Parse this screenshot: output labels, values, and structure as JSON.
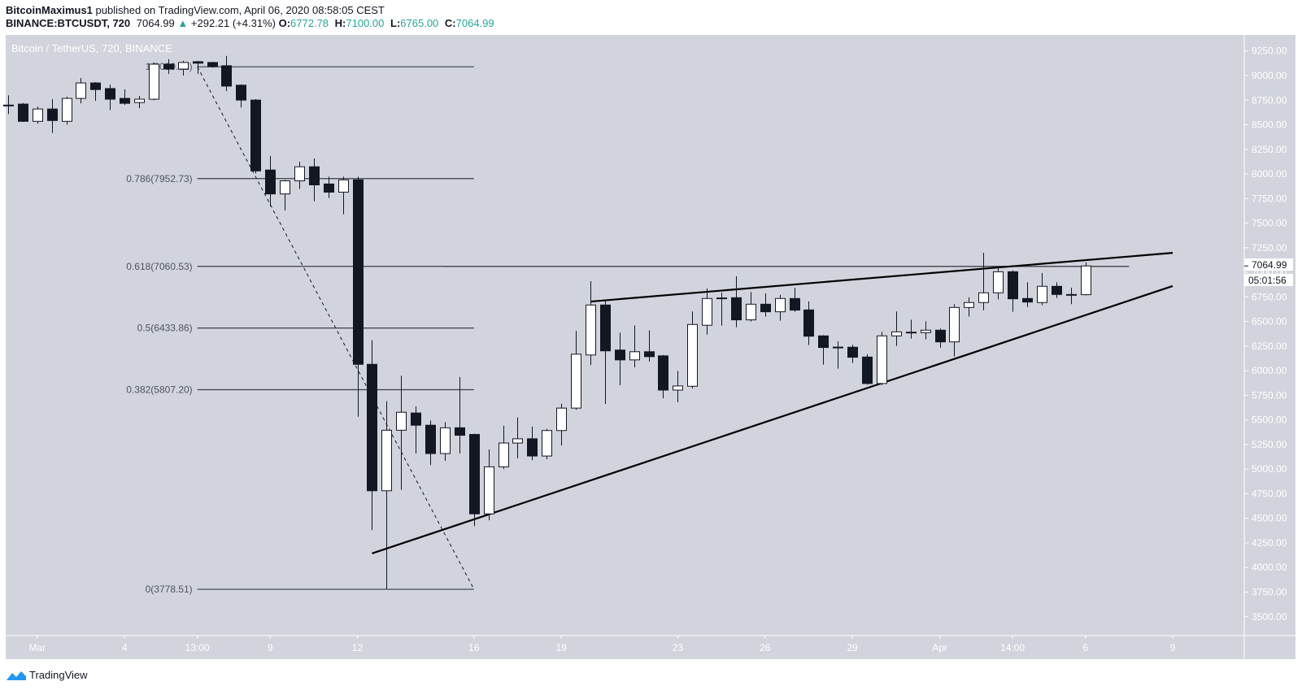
{
  "header": {
    "author": "BitcoinMaximus1",
    "published": "published on TradingView.com, April 06, 2020 08:58:05 CEST",
    "symbol": "BINANCE:BTCUSDT, 720",
    "last": "7064.99",
    "change": "+292.21 (+4.31%)",
    "o_label": "O:",
    "o": "6772.78",
    "h_label": "H:",
    "h": "7100.00",
    "l_label": "L:",
    "l": "6765.00",
    "c_label": "C:",
    "c": "7064.99",
    "up_icon": "triangle-up-icon"
  },
  "footer": {
    "brand": "TradingView",
    "logo_icon": "tradingview-logo-icon"
  },
  "colors": {
    "background": "#d1d4dc",
    "bear": "#131722",
    "bull": "#ffffff",
    "axis_text": "#ffffff",
    "change_green": "#26a69a"
  },
  "chart_data": {
    "type": "candlestick",
    "title": "Bitcoin / TetherUS, 720, BINANCE",
    "ylim": [
      3308,
      9413
    ],
    "xlim": [
      "2020-02-28 22:00",
      "2020-04-11 11:00"
    ],
    "grid": false,
    "y_ticks": [
      "9250.00",
      "9000.00",
      "8750.00",
      "8500.00",
      "8250.00",
      "8000.00",
      "7750.00",
      "7500.00",
      "7250.00",
      "7000.00",
      "6750.00",
      "6500.00",
      "6250.00",
      "6000.00",
      "5750.00",
      "5500.00",
      "5250.00",
      "5000.00",
      "4750.00",
      "4500.00",
      "4250.00",
      "4000.00",
      "3750.00",
      "3500.00"
    ],
    "x_ticks": [
      {
        "label": "Mar",
        "t": "2020-03-01 00:00"
      },
      {
        "label": "4",
        "t": "2020-03-04 00:00"
      },
      {
        "label": "13:00",
        "t": "2020-03-06 12:00"
      },
      {
        "label": "9",
        "t": "2020-03-09 00:00"
      },
      {
        "label": "12",
        "t": "2020-03-12 00:00"
      },
      {
        "label": "16",
        "t": "2020-03-16 00:00"
      },
      {
        "label": "19",
        "t": "2020-03-19 00:00"
      },
      {
        "label": "23",
        "t": "2020-03-23 00:00"
      },
      {
        "label": "26",
        "t": "2020-03-26 00:00"
      },
      {
        "label": "29",
        "t": "2020-03-29 00:00"
      },
      {
        "label": "Apr",
        "t": "2020-04-01 00:00"
      },
      {
        "label": "14:00",
        "t": "2020-04-03 12:00"
      },
      {
        "label": "6",
        "t": "2020-04-06 00:00"
      },
      {
        "label": "9",
        "t": "2020-04-09 00:00"
      }
    ],
    "last_price_label": "7064.99",
    "countdown": "05:01:56",
    "candles": [
      [
        "2020-02-29 00:00",
        8700,
        8800,
        8610,
        8700
      ],
      [
        "2020-02-29 12:00",
        8710,
        8720,
        8530,
        8535
      ],
      [
        "2020-03-01 00:00",
        8535,
        8685,
        8510,
        8660
      ],
      [
        "2020-03-01 12:00",
        8660,
        8760,
        8417,
        8543
      ],
      [
        "2020-03-02 00:00",
        8535,
        8785,
        8502,
        8768
      ],
      [
        "2020-03-02 12:00",
        8768,
        8975,
        8718,
        8925
      ],
      [
        "2020-03-03 00:00",
        8925,
        8934,
        8743,
        8858
      ],
      [
        "2020-03-03 12:00",
        8868,
        8908,
        8650,
        8760
      ],
      [
        "2020-03-04 00:00",
        8768,
        8860,
        8701,
        8718
      ],
      [
        "2020-03-04 12:00",
        8726,
        8793,
        8667,
        8760
      ],
      [
        "2020-03-05 00:00",
        8760,
        9133,
        8750,
        9116
      ],
      [
        "2020-03-05 12:00",
        9116,
        9166,
        9017,
        9066
      ],
      [
        "2020-03-06 00:00",
        9066,
        9150,
        9000,
        9133
      ],
      [
        "2020-03-06 12:00",
        9141,
        9150,
        9017,
        9126
      ],
      [
        "2020-03-07 00:00",
        9133,
        9140,
        9080,
        9091
      ],
      [
        "2020-03-07 12:00",
        9100,
        9200,
        8843,
        8893
      ],
      [
        "2020-03-08 00:00",
        8902,
        8910,
        8676,
        8751
      ],
      [
        "2020-03-08 12:00",
        8751,
        8760,
        8006,
        8031
      ],
      [
        "2020-03-09 00:00",
        8040,
        8183,
        7672,
        7797
      ],
      [
        "2020-03-09 12:00",
        7797,
        7940,
        7630,
        7930
      ],
      [
        "2020-03-10 00:00",
        7930,
        8123,
        7847,
        8073
      ],
      [
        "2020-03-10 12:00",
        8073,
        8157,
        7722,
        7889
      ],
      [
        "2020-03-11 00:00",
        7898,
        7972,
        7756,
        7815
      ],
      [
        "2020-03-11 12:00",
        7815,
        7972,
        7590,
        7940
      ],
      [
        "2020-03-12 00:00",
        7940,
        7972,
        5532,
        6065
      ],
      [
        "2020-03-12 12:00",
        6065,
        6310,
        4380,
        4780
      ],
      [
        "2020-03-13 00:00",
        4780,
        5690,
        3782,
        5395
      ],
      [
        "2020-03-13 12:00",
        5395,
        5950,
        4790,
        5578
      ],
      [
        "2020-03-14 00:00",
        5570,
        5637,
        5158,
        5446
      ],
      [
        "2020-03-14 12:00",
        5446,
        5494,
        5042,
        5158
      ],
      [
        "2020-03-15 00:00",
        5158,
        5477,
        5084,
        5420
      ],
      [
        "2020-03-15 12:00",
        5420,
        5936,
        5158,
        5344
      ],
      [
        "2020-03-16 00:00",
        5352,
        5360,
        4420,
        4545
      ],
      [
        "2020-03-16 12:00",
        4545,
        5200,
        4480,
        5023
      ],
      [
        "2020-03-17 00:00",
        5023,
        5440,
        5000,
        5265
      ],
      [
        "2020-03-17 12:00",
        5265,
        5525,
        5110,
        5308
      ],
      [
        "2020-03-18 00:00",
        5308,
        5433,
        5090,
        5133
      ],
      [
        "2020-03-18 12:00",
        5133,
        5408,
        5100,
        5392
      ],
      [
        "2020-03-19 00:00",
        5392,
        5665,
        5240,
        5620
      ],
      [
        "2020-03-19 12:00",
        5620,
        6405,
        5603,
        6168
      ],
      [
        "2020-03-20 00:00",
        6160,
        6910,
        6058,
        6668
      ],
      [
        "2020-03-20 12:00",
        6668,
        6718,
        5662,
        6202
      ],
      [
        "2020-03-21 00:00",
        6210,
        6386,
        5853,
        6110
      ],
      [
        "2020-03-21 12:00",
        6110,
        6460,
        6035,
        6193
      ],
      [
        "2020-03-22 00:00",
        6193,
        6410,
        6093,
        6143
      ],
      [
        "2020-03-22 12:00",
        6151,
        6160,
        5720,
        5803
      ],
      [
        "2020-03-23 00:00",
        5803,
        5997,
        5680,
        5845
      ],
      [
        "2020-03-23 12:00",
        5842,
        6602,
        5820,
        6470
      ],
      [
        "2020-03-24 00:00",
        6462,
        6836,
        6368,
        6734
      ],
      [
        "2020-03-24 12:00",
        6737,
        6795,
        6459,
        6740
      ],
      [
        "2020-03-25 00:00",
        6742,
        6960,
        6442,
        6517
      ],
      [
        "2020-03-25 12:00",
        6517,
        6800,
        6500,
        6676
      ],
      [
        "2020-03-26 00:00",
        6676,
        6786,
        6550,
        6599
      ],
      [
        "2020-03-26 12:00",
        6599,
        6770,
        6508,
        6734
      ],
      [
        "2020-03-27 00:00",
        6734,
        6844,
        6599,
        6616
      ],
      [
        "2020-03-27 12:00",
        6618,
        6704,
        6261,
        6351
      ],
      [
        "2020-03-28 00:00",
        6354,
        6362,
        6062,
        6236
      ],
      [
        "2020-03-28 12:00",
        6239,
        6299,
        6021,
        6240
      ],
      [
        "2020-03-29 00:00",
        6239,
        6263,
        6079,
        6137
      ],
      [
        "2020-03-29 12:00",
        6139,
        6167,
        5859,
        5870
      ],
      [
        "2020-03-30 00:00",
        5870,
        6395,
        5853,
        6354
      ],
      [
        "2020-03-30 12:00",
        6354,
        6602,
        6252,
        6395
      ],
      [
        "2020-03-31 00:00",
        6392,
        6519,
        6326,
        6390
      ],
      [
        "2020-03-31 12:00",
        6387,
        6502,
        6318,
        6412
      ],
      [
        "2020-04-01 00:00",
        6412,
        6428,
        6235,
        6293
      ],
      [
        "2020-04-01 12:00",
        6293,
        6676,
        6145,
        6643
      ],
      [
        "2020-04-02 00:00",
        6643,
        6745,
        6552,
        6693
      ],
      [
        "2020-04-02 12:00",
        6693,
        7199,
        6615,
        6792
      ],
      [
        "2020-04-03 00:00",
        6792,
        7042,
        6726,
        7006
      ],
      [
        "2020-04-03 12:00",
        7006,
        7020,
        6599,
        6731
      ],
      [
        "2020-04-04 00:00",
        6734,
        6899,
        6648,
        6698
      ],
      [
        "2020-04-04 12:00",
        6693,
        6993,
        6665,
        6858
      ],
      [
        "2020-04-05 00:00",
        6858,
        6899,
        6739,
        6775
      ],
      [
        "2020-04-05 12:00",
        6775,
        6844,
        6676,
        6772
      ],
      [
        "2020-04-06 00:00",
        6772.78,
        7100,
        6765,
        7064.99
      ]
    ],
    "drawings": {
      "fib": {
        "from": "2020-03-06 12:00",
        "to": "2020-03-16 00:00",
        "levels": [
          {
            "label": "1(9089.12)",
            "price": 9089.12
          },
          {
            "label": "0.786(7952.73)",
            "price": 7952.73
          },
          {
            "label": "0.618(7060.53)",
            "price": 7060.53
          },
          {
            "label": "0.5(6433.86)",
            "price": 6433.86
          },
          {
            "label": "0.382(5807.20)",
            "price": 5807.2
          },
          {
            "label": "0(3778.51)",
            "price": 3778.51
          }
        ]
      },
      "fib_trend": {
        "from": [
          "2020-03-06 12:00",
          9089.12
        ],
        "to": [
          "2020-03-16 00:00",
          3778.51
        ]
      },
      "horizontal": {
        "from": "2020-03-15 00:00",
        "to": "2020-04-07 12:00",
        "price": 7060.53
      },
      "upper_trendline": {
        "from": [
          "2020-03-20 00:00",
          6703
        ],
        "to": [
          "2020-04-09 00:00",
          7198
        ]
      },
      "lower_trendline": {
        "from": [
          "2020-03-12 12:00",
          4143
        ],
        "to": [
          "2020-04-09 00:00",
          6861
        ]
      }
    }
  }
}
